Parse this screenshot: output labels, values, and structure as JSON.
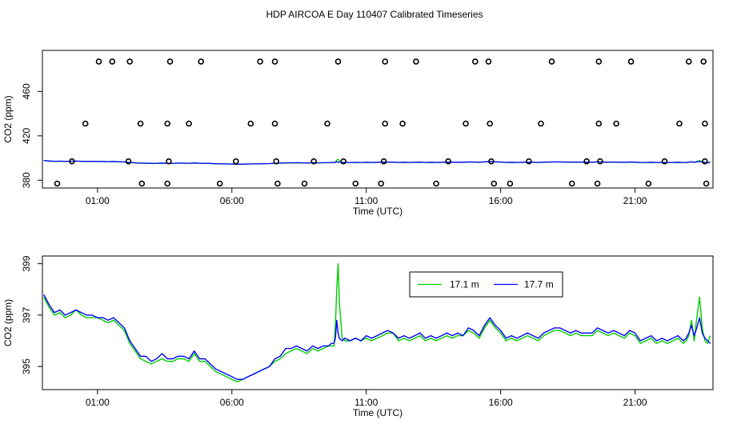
{
  "title": "HDP AIRCOA E  Day 110407  Calibrated Timeseries",
  "chart_data": [
    {
      "type": "scatter",
      "xlabel": "Time (UTC)",
      "ylabel": "CO2 (ppm)",
      "xlim": [
        -1.05,
        23.9
      ],
      "ylim": [
        373,
        497
      ],
      "xticks": [
        1,
        6,
        11,
        16,
        21
      ],
      "xtick_labels": [
        "01:00",
        "06:00",
        "11:00",
        "16:00",
        "21:00"
      ],
      "yticks": [
        380,
        420,
        460
      ],
      "ytick_labels": [
        "380",
        "420",
        "460"
      ],
      "grid": false,
      "points": {
        "x": [
          1.05,
          1.55,
          2.2,
          3.7,
          4.85,
          7.05,
          7.6,
          9.95,
          11.7,
          12.85,
          15.05,
          15.55,
          17.9,
          19.65,
          20.85,
          23.0,
          23.55,
          0.55,
          2.6,
          3.6,
          4.4,
          6.7,
          7.6,
          9.55,
          11.7,
          12.35,
          14.7,
          15.6,
          17.5,
          19.65,
          20.3,
          22.65,
          23.6,
          0.05,
          2.15,
          3.65,
          6.15,
          7.65,
          9.05,
          10.15,
          11.65,
          14.05,
          15.65,
          17.05,
          19.2,
          19.7,
          22.1,
          23.6,
          -0.5,
          2.65,
          3.6,
          5.55,
          7.7,
          8.7,
          10.6,
          11.55,
          13.6,
          15.75,
          16.35,
          18.65,
          19.6,
          21.5,
          23.65
        ],
        "y": [
          487,
          487,
          487,
          487,
          487,
          487,
          487,
          487,
          487,
          487,
          487,
          487,
          487,
          487,
          487,
          487,
          487,
          431,
          431,
          431,
          431,
          431,
          431,
          431,
          431,
          431,
          431,
          431,
          431,
          431,
          431,
          431,
          431,
          397,
          397,
          397,
          397,
          397,
          397,
          397,
          397,
          397,
          397,
          397,
          397,
          397,
          397,
          397,
          377,
          377,
          377,
          377,
          377,
          377,
          377,
          377,
          377,
          377,
          377,
          377,
          377,
          377,
          377
        ]
      },
      "series": [
        {
          "values_ref": "chart_data.1.series",
          "color": "#0000ff"
        }
      ]
    },
    {
      "type": "line",
      "xlabel": "Time (UTC)",
      "ylabel": "CO2 (ppm)",
      "xlim": [
        -1.05,
        23.9
      ],
      "ylim": [
        394.1,
        399.3
      ],
      "xticks": [
        1,
        6,
        11,
        16,
        21
      ],
      "xtick_labels": [
        "01:00",
        "06:00",
        "11:00",
        "16:00",
        "21:00"
      ],
      "yticks": [
        395,
        397,
        399
      ],
      "ytick_labels": [
        "395",
        "397",
        "399"
      ],
      "grid": false,
      "legend": "top-center",
      "series": [
        {
          "name": "17.1 m",
          "color": "#00cc00",
          "x": [
            -1.0,
            -0.8,
            -0.6,
            -0.4,
            -0.2,
            0.0,
            0.2,
            0.4,
            0.6,
            0.8,
            1.0,
            1.2,
            1.4,
            1.6,
            1.8,
            2.0,
            2.2,
            2.4,
            2.6,
            2.8,
            3.0,
            3.2,
            3.4,
            3.6,
            3.8,
            4.0,
            4.2,
            4.4,
            4.6,
            4.8,
            5.0,
            5.2,
            5.4,
            5.6,
            5.8,
            6.0,
            6.2,
            6.4,
            6.6,
            6.8,
            7.0,
            7.2,
            7.4,
            7.6,
            7.8,
            8.0,
            8.2,
            8.4,
            8.6,
            8.8,
            9.0,
            9.2,
            9.4,
            9.6,
            9.7,
            9.8,
            9.85,
            9.9,
            9.95,
            10.0,
            10.1,
            10.2,
            10.4,
            10.6,
            10.8,
            11.0,
            11.2,
            11.4,
            11.6,
            11.8,
            12.0,
            12.2,
            12.4,
            12.6,
            12.8,
            13.0,
            13.2,
            13.4,
            13.6,
            13.8,
            14.0,
            14.2,
            14.4,
            14.6,
            14.8,
            15.0,
            15.2,
            15.4,
            15.6,
            15.8,
            16.0,
            16.2,
            16.4,
            16.6,
            16.8,
            17.0,
            17.2,
            17.4,
            17.6,
            17.8,
            18.0,
            18.2,
            18.4,
            18.6,
            18.8,
            19.0,
            19.2,
            19.4,
            19.6,
            19.8,
            20.0,
            20.2,
            20.4,
            20.6,
            20.8,
            21.0,
            21.2,
            21.4,
            21.6,
            21.8,
            22.0,
            22.2,
            22.4,
            22.6,
            22.8,
            22.9,
            23.0,
            23.1,
            23.2,
            23.3,
            23.4,
            23.5,
            23.6,
            23.7,
            23.8
          ],
          "values": [
            397.7,
            397.3,
            397.0,
            397.1,
            396.9,
            397.0,
            397.2,
            397.0,
            396.9,
            396.9,
            396.9,
            396.8,
            396.7,
            396.8,
            396.6,
            396.4,
            395.9,
            395.6,
            395.3,
            395.2,
            395.1,
            395.2,
            395.3,
            395.2,
            395.2,
            395.3,
            395.3,
            395.2,
            395.5,
            395.2,
            395.2,
            395.0,
            394.8,
            394.7,
            394.6,
            394.5,
            394.4,
            394.5,
            394.6,
            394.7,
            394.8,
            394.9,
            395.0,
            395.2,
            395.3,
            395.5,
            395.6,
            395.7,
            395.6,
            395.5,
            395.7,
            395.6,
            395.7,
            395.8,
            395.8,
            395.8,
            396.6,
            398.0,
            399.0,
            397.5,
            396.1,
            396.0,
            396.0,
            396.1,
            396.0,
            396.1,
            396.0,
            396.1,
            396.2,
            396.3,
            396.3,
            396.0,
            396.1,
            396.0,
            396.1,
            396.2,
            396.0,
            396.1,
            396.0,
            396.1,
            396.2,
            396.1,
            396.2,
            396.2,
            396.4,
            396.3,
            396.1,
            396.5,
            396.8,
            396.5,
            396.3,
            396.0,
            396.1,
            396.0,
            396.1,
            396.2,
            396.1,
            396.0,
            396.2,
            396.3,
            396.4,
            396.4,
            396.3,
            396.2,
            396.3,
            396.2,
            396.2,
            396.2,
            396.4,
            396.3,
            396.2,
            396.3,
            396.2,
            396.1,
            396.3,
            396.2,
            395.9,
            396.0,
            396.1,
            395.9,
            396.0,
            395.9,
            396.0,
            396.1,
            395.9,
            396.0,
            396.2,
            396.8,
            396.0,
            396.9,
            397.7,
            396.5,
            396.0,
            395.9,
            396.2
          ]
        },
        {
          "name": "17.7 m",
          "color": "#0000ff",
          "x": [
            -1.0,
            -0.8,
            -0.6,
            -0.4,
            -0.2,
            0.0,
            0.2,
            0.4,
            0.6,
            0.8,
            1.0,
            1.2,
            1.4,
            1.6,
            1.8,
            2.0,
            2.2,
            2.4,
            2.6,
            2.8,
            3.0,
            3.2,
            3.4,
            3.6,
            3.8,
            4.0,
            4.2,
            4.4,
            4.6,
            4.8,
            5.0,
            5.2,
            5.4,
            5.6,
            5.8,
            6.0,
            6.2,
            6.4,
            6.6,
            6.8,
            7.0,
            7.2,
            7.4,
            7.6,
            7.8,
            8.0,
            8.2,
            8.4,
            8.6,
            8.8,
            9.0,
            9.2,
            9.4,
            9.6,
            9.7,
            9.8,
            9.85,
            9.9,
            9.95,
            10.0,
            10.1,
            10.2,
            10.4,
            10.6,
            10.8,
            11.0,
            11.2,
            11.4,
            11.6,
            11.8,
            12.0,
            12.2,
            12.4,
            12.6,
            12.8,
            13.0,
            13.2,
            13.4,
            13.6,
            13.8,
            14.0,
            14.2,
            14.4,
            14.6,
            14.8,
            15.0,
            15.2,
            15.4,
            15.6,
            15.8,
            16.0,
            16.2,
            16.4,
            16.6,
            16.8,
            17.0,
            17.2,
            17.4,
            17.6,
            17.8,
            18.0,
            18.2,
            18.4,
            18.6,
            18.8,
            19.0,
            19.2,
            19.4,
            19.6,
            19.8,
            20.0,
            20.2,
            20.4,
            20.6,
            20.8,
            21.0,
            21.2,
            21.4,
            21.6,
            21.8,
            22.0,
            22.2,
            22.4,
            22.6,
            22.8,
            22.9,
            23.0,
            23.1,
            23.2,
            23.3,
            23.4,
            23.5,
            23.6,
            23.7,
            23.8
          ],
          "values": [
            397.8,
            397.4,
            397.1,
            397.2,
            397.0,
            397.1,
            397.2,
            397.1,
            397.0,
            397.0,
            396.9,
            396.9,
            396.8,
            396.9,
            396.7,
            396.5,
            396.0,
            395.7,
            395.4,
            395.4,
            395.2,
            395.3,
            395.5,
            395.3,
            395.3,
            395.4,
            395.4,
            395.3,
            395.6,
            395.3,
            395.3,
            395.1,
            394.9,
            394.8,
            394.7,
            394.6,
            394.5,
            394.5,
            394.6,
            394.7,
            394.8,
            394.9,
            395.0,
            395.3,
            395.4,
            395.7,
            395.7,
            395.8,
            395.7,
            395.6,
            395.8,
            395.7,
            395.8,
            395.8,
            395.9,
            395.9,
            396.1,
            396.8,
            396.3,
            396.1,
            396.0,
            396.1,
            396.0,
            396.1,
            396.0,
            396.2,
            396.1,
            396.2,
            396.3,
            396.4,
            396.3,
            396.1,
            396.2,
            396.1,
            396.2,
            396.3,
            396.1,
            396.2,
            396.1,
            396.2,
            396.3,
            396.2,
            396.3,
            396.2,
            396.5,
            396.4,
            396.2,
            396.6,
            396.9,
            396.6,
            396.4,
            396.1,
            396.2,
            396.1,
            396.2,
            396.3,
            396.2,
            396.1,
            396.3,
            396.4,
            396.5,
            396.5,
            396.4,
            396.3,
            396.4,
            396.3,
            396.3,
            396.3,
            396.5,
            396.4,
            396.3,
            396.4,
            396.3,
            396.2,
            396.4,
            396.3,
            396.0,
            396.1,
            396.2,
            396.0,
            396.1,
            396.0,
            396.1,
            396.2,
            396.0,
            396.1,
            396.3,
            396.6,
            396.2,
            396.5,
            396.9,
            396.3,
            396.1,
            396.0,
            395.9
          ]
        }
      ]
    }
  ]
}
